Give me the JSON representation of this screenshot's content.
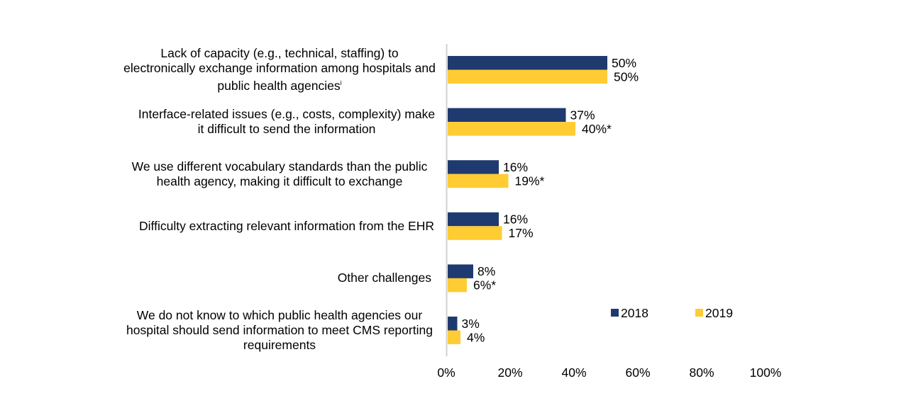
{
  "chart_data": {
    "type": "bar",
    "orientation": "horizontal",
    "title": "",
    "xlabel": "",
    "ylabel": "",
    "xlim": [
      0,
      100
    ],
    "x_ticks": [
      "0%",
      "20%",
      "40%",
      "60%",
      "80%",
      "100%"
    ],
    "grid": false,
    "legend_position": "bottom-right",
    "categories": [
      {
        "text": "Lack of capacity (e.g., technical, staffing) to electronically exchange information among hospitals and public health agencies",
        "footnote": "i"
      },
      {
        "text": "Interface-related issues (e.g., costs, complexity) make it difficult to send the information",
        "footnote": ""
      },
      {
        "text": "We use different vocabulary standards than the public health agency, making it difficult to exchange",
        "footnote": ""
      },
      {
        "text": "Difficulty extracting relevant information from the EHR",
        "footnote": ""
      },
      {
        "text": "Other challenges",
        "footnote": ""
      },
      {
        "text": "We do not know to which public health agencies our hospital should send information to meet CMS reporting requirements",
        "footnote": ""
      }
    ],
    "series": [
      {
        "name": "2018",
        "color": "#1F3A6E",
        "values": [
          50,
          37,
          16,
          16,
          8,
          3
        ],
        "labels": [
          "50%",
          "37%",
          "16%",
          "16%",
          "8%",
          "3%"
        ]
      },
      {
        "name": "2019",
        "color": "#FFCC33",
        "values": [
          50,
          40,
          19,
          17,
          6,
          4
        ],
        "labels": [
          "50%",
          "40%*",
          "19%*",
          "17%",
          "6%*",
          "4%"
        ]
      }
    ]
  }
}
